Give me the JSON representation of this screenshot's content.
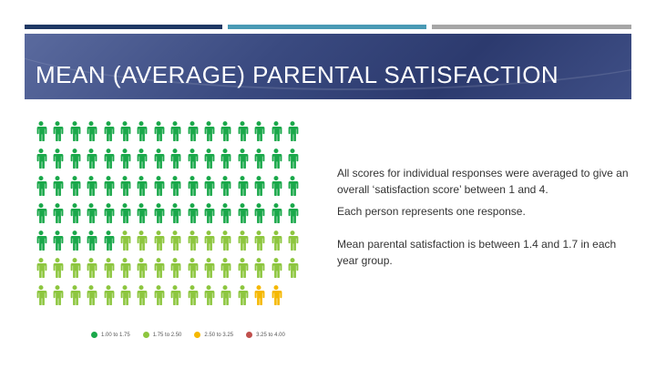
{
  "title": "MEAN (AVERAGE) PARENTAL SATISFACTION",
  "body": {
    "para1": "All scores for individual responses were averaged to give an overall ‘satisfaction score’ between 1 and 4.",
    "para2": "Each person represents one response.",
    "para3": "Mean parental satisfaction is between 1.4 and 1.7 in each year group."
  },
  "pictogram": {
    "icon": "person-icon",
    "rows": [
      16,
      16,
      16,
      16,
      16,
      16,
      15
    ],
    "counts": {
      "dark_green": 69,
      "light_green": 40,
      "yellow": 2,
      "red": 0
    }
  },
  "legend": [
    {
      "label": "1.00 to 1.75",
      "color": "#1aa84a"
    },
    {
      "label": "1.75 to 2.50",
      "color": "#8dc63f"
    },
    {
      "label": "2.50 to 3.25",
      "color": "#f5b800"
    },
    {
      "label": "3.25 to 4.00",
      "color": "#c0504d"
    }
  ],
  "colors": {
    "dark_green": "#1aa84a",
    "light_green": "#8dc63f",
    "yellow": "#f5b800",
    "red": "#c0504d",
    "banner": "#3a4a80"
  }
}
